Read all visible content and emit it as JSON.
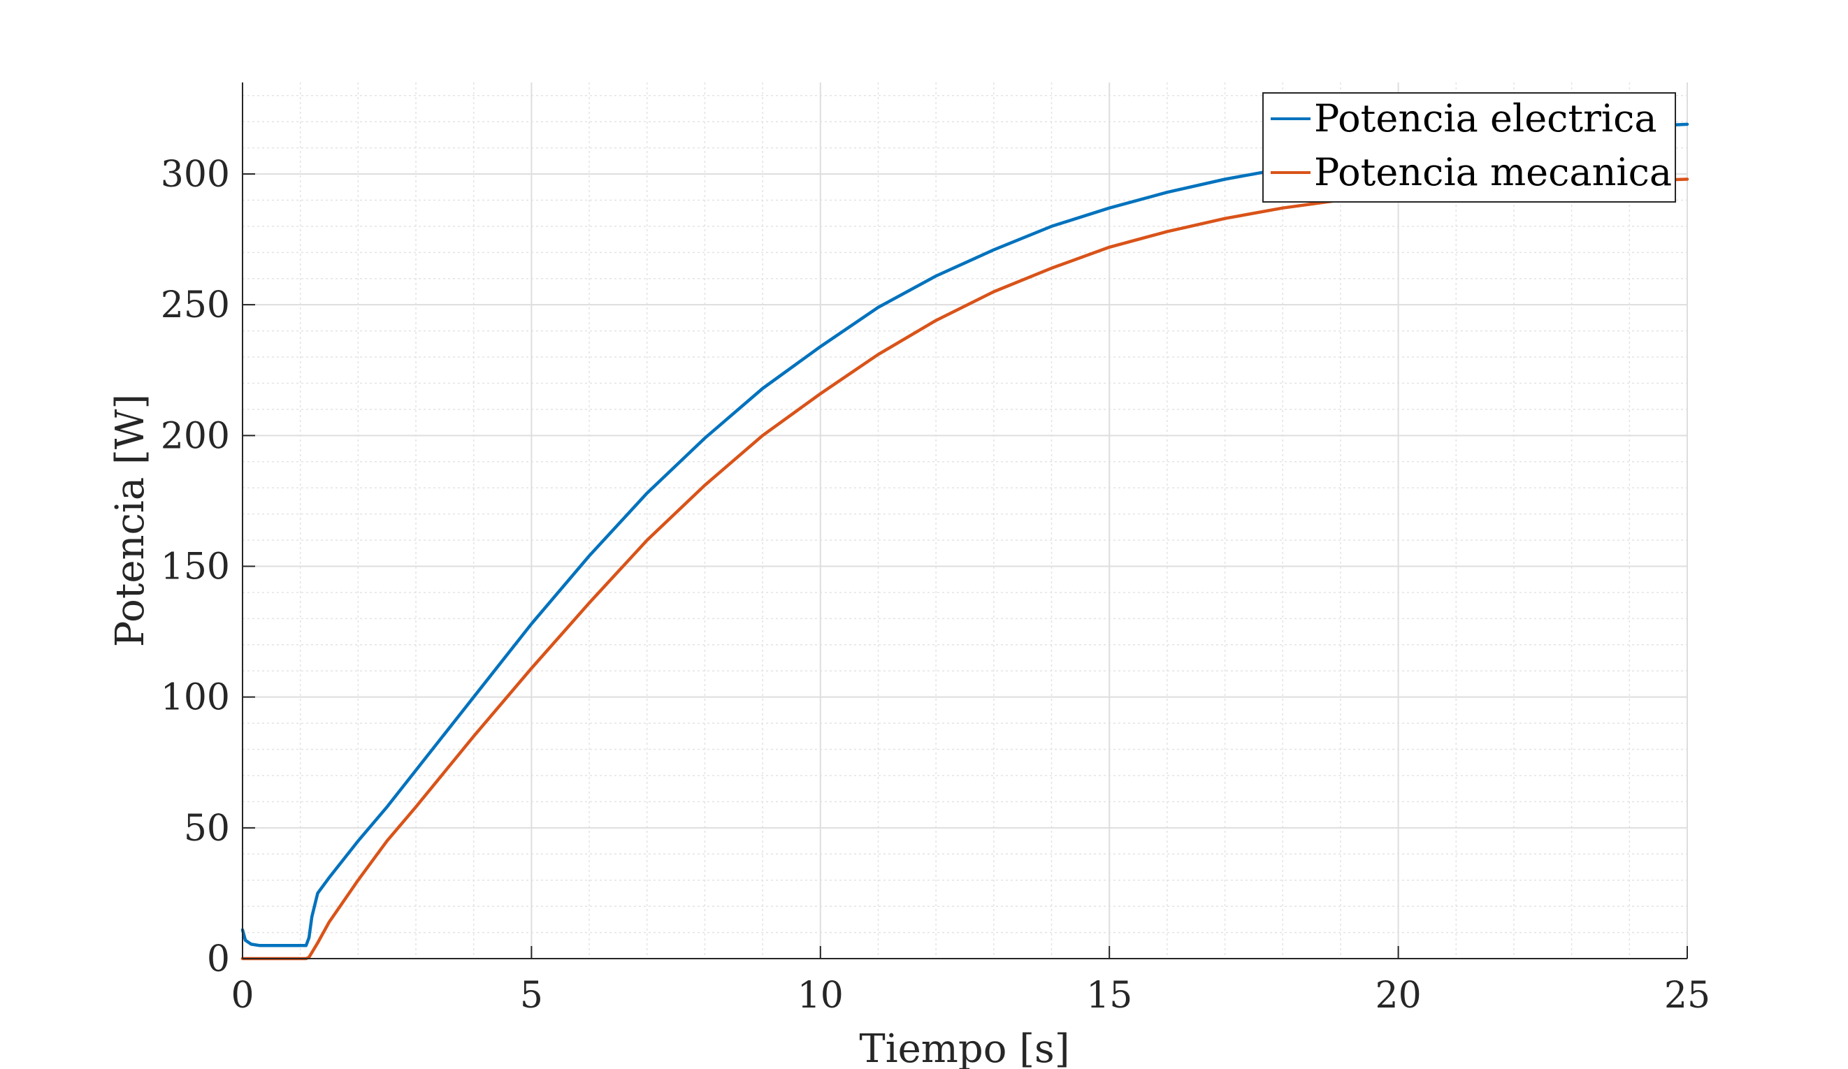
{
  "chart_data": {
    "type": "line",
    "title": "",
    "xlabel": "Tiempo [s]",
    "ylabel": "Potencia [W]",
    "xlim": [
      0,
      25
    ],
    "ylim": [
      0,
      335
    ],
    "xticks": [
      0,
      5,
      10,
      15,
      20,
      25
    ],
    "xtick_labels": [
      "0",
      "5",
      "10",
      "15",
      "20",
      "25"
    ],
    "yticks": [
      0,
      50,
      100,
      150,
      200,
      250,
      300
    ],
    "ytick_labels": [
      "0",
      "50",
      "100",
      "150",
      "200",
      "250",
      "300"
    ],
    "grid": true,
    "minor_grid": true,
    "legend_position": "top-right",
    "series": [
      {
        "name": "Potencia electrica",
        "color": "#0072BD",
        "x": [
          0,
          0.05,
          0.15,
          0.3,
          0.6,
          1.0,
          1.1,
          1.15,
          1.2,
          1.3,
          1.5,
          2.0,
          2.5,
          3,
          4,
          5,
          6,
          7,
          8,
          9,
          10,
          11,
          12,
          13,
          14,
          15,
          16,
          17,
          18,
          19,
          20,
          21,
          22,
          23,
          24,
          25
        ],
        "y": [
          11,
          7,
          5.5,
          5,
          5,
          5,
          5,
          8,
          16,
          25,
          31,
          45,
          58,
          72,
          100,
          128,
          154,
          178,
          199,
          218,
          234,
          249,
          261,
          271,
          280,
          287,
          293,
          298,
          302,
          306,
          309,
          312,
          314,
          316,
          318,
          319
        ]
      },
      {
        "name": "Potencia mecanica",
        "color": "#D95319",
        "x": [
          0,
          0.5,
          1.0,
          1.1,
          1.15,
          1.3,
          1.5,
          2.0,
          2.5,
          3,
          4,
          5,
          6,
          7,
          8,
          9,
          10,
          11,
          12,
          13,
          14,
          15,
          16,
          17,
          18,
          19,
          20,
          21,
          22,
          23,
          24,
          25
        ],
        "y": [
          0,
          0,
          0,
          0,
          0.5,
          6,
          14,
          30,
          45,
          58,
          85,
          111,
          136,
          160,
          181,
          200,
          216,
          231,
          244,
          255,
          264,
          272,
          278,
          283,
          287,
          290,
          292,
          294,
          295.5,
          296.5,
          297.3,
          298
        ]
      }
    ]
  }
}
